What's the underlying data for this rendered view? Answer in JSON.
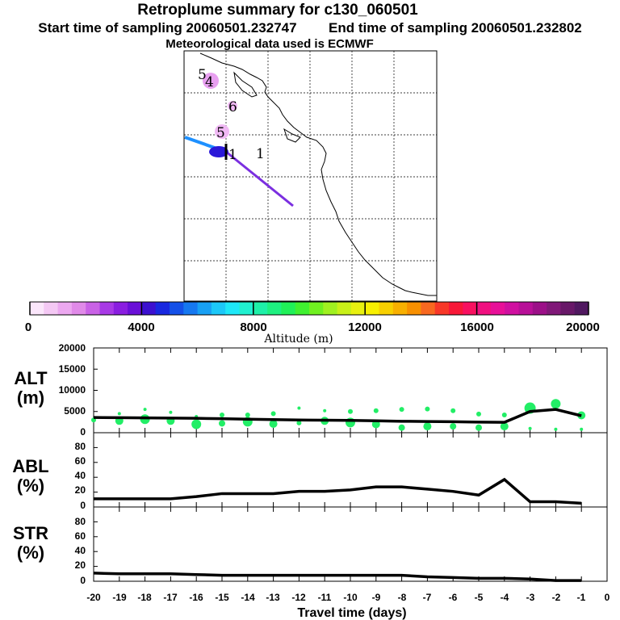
{
  "header": {
    "title": "Retroplume summary for c130_060501",
    "start_label": "Start time of sampling 20060501.232747",
    "end_label": "End time of sampling 20060501.232802",
    "met_label": "Meteorological data used is ECMWF"
  },
  "map": {
    "day_labels": [
      "5",
      "4",
      "6",
      "5",
      "1",
      "1"
    ],
    "trajectory_colors": [
      "#1e90ff",
      "#7b2fe0",
      "#2a18d8"
    ]
  },
  "colorbar": {
    "xlabel": "Altitude (m)",
    "ticks": [
      "0",
      "4000",
      "8000",
      "12000",
      "16000",
      "20000"
    ],
    "colors": [
      "#fbe6fb",
      "#f4c8f4",
      "#eca8f0",
      "#e08ae8",
      "#c962e6",
      "#a83ae6",
      "#8a1ee0",
      "#6a10d8",
      "#3c10d0",
      "#1828e0",
      "#1450e8",
      "#1678f0",
      "#18a0f4",
      "#1cc8f8",
      "#1ee8f8",
      "#20f0d0",
      "#1ef0a8",
      "#1ef080",
      "#20f058",
      "#40f030",
      "#70f020",
      "#a0f020",
      "#c8f018",
      "#e8f010",
      "#f8f000",
      "#f8d000",
      "#f8b000",
      "#f89000",
      "#f86820",
      "#f83828",
      "#f81838",
      "#f81060",
      "#f01080",
      "#e81098",
      "#d010a0",
      "#b81098",
      "#9c1088",
      "#801878",
      "#681868",
      "#501860"
    ]
  },
  "chart_data": [
    {
      "type": "line",
      "title": "ALT (m)",
      "ylabel_main": "ALT",
      "ylabel_unit": "(m)",
      "x": [
        -20,
        -19,
        -18,
        -17,
        -16,
        -15,
        -14,
        -13,
        -12,
        -11,
        -10,
        -9,
        -8,
        -7,
        -6,
        -5,
        -4,
        -3,
        -2,
        -1
      ],
      "values": [
        3600,
        3550,
        3500,
        3450,
        3400,
        3300,
        3200,
        3100,
        3000,
        2950,
        2900,
        2800,
        2700,
        2650,
        2600,
        2500,
        2450,
        5000,
        5500,
        4000
      ],
      "ylim": [
        0,
        20000
      ],
      "yticks": [
        "0",
        "5000",
        "10000",
        "15000",
        "20000"
      ],
      "scatter": [
        {
          "x": -20,
          "y": 3000,
          "r": 3
        },
        {
          "x": -19,
          "y": 2800,
          "r": 5
        },
        {
          "x": -19,
          "y": 4500,
          "r": 2
        },
        {
          "x": -18,
          "y": 3200,
          "r": 6
        },
        {
          "x": -18,
          "y": 5500,
          "r": 2
        },
        {
          "x": -17,
          "y": 2800,
          "r": 5
        },
        {
          "x": -17,
          "y": 4800,
          "r": 2
        },
        {
          "x": -16,
          "y": 2000,
          "r": 6
        },
        {
          "x": -16,
          "y": 3800,
          "r": 2
        },
        {
          "x": -15,
          "y": 2200,
          "r": 4
        },
        {
          "x": -15,
          "y": 4200,
          "r": 3
        },
        {
          "x": -14,
          "y": 2600,
          "r": 6
        },
        {
          "x": -14,
          "y": 4200,
          "r": 3
        },
        {
          "x": -13,
          "y": 2100,
          "r": 5
        },
        {
          "x": -13,
          "y": 4500,
          "r": 3
        },
        {
          "x": -12,
          "y": 2300,
          "r": 3
        },
        {
          "x": -12,
          "y": 5800,
          "r": 2
        },
        {
          "x": -11,
          "y": 2800,
          "r": 5
        },
        {
          "x": -11,
          "y": 5200,
          "r": 2
        },
        {
          "x": -10,
          "y": 2400,
          "r": 6
        },
        {
          "x": -10,
          "y": 5000,
          "r": 3
        },
        {
          "x": -9,
          "y": 2000,
          "r": 5
        },
        {
          "x": -9,
          "y": 5200,
          "r": 3
        },
        {
          "x": -8,
          "y": 1200,
          "r": 4
        },
        {
          "x": -8,
          "y": 5500,
          "r": 3
        },
        {
          "x": -7,
          "y": 1500,
          "r": 5
        },
        {
          "x": -7,
          "y": 5600,
          "r": 3
        },
        {
          "x": -6,
          "y": 1500,
          "r": 4
        },
        {
          "x": -6,
          "y": 5200,
          "r": 3
        },
        {
          "x": -5,
          "y": 1200,
          "r": 4
        },
        {
          "x": -5,
          "y": 4400,
          "r": 3
        },
        {
          "x": -4,
          "y": 1500,
          "r": 5
        },
        {
          "x": -4,
          "y": 4200,
          "r": 3
        },
        {
          "x": -3,
          "y": 5800,
          "r": 7
        },
        {
          "x": -3,
          "y": 1000,
          "r": 2
        },
        {
          "x": -2,
          "y": 6800,
          "r": 6
        },
        {
          "x": -2,
          "y": 800,
          "r": 2
        },
        {
          "x": -1,
          "y": 4100,
          "r": 5
        },
        {
          "x": -1,
          "y": 800,
          "r": 2
        }
      ]
    },
    {
      "type": "line",
      "title": "ABL (%)",
      "ylabel_main": "ABL",
      "ylabel_unit": "(%)",
      "x": [
        -20,
        -19,
        -18,
        -17,
        -16,
        -15,
        -14,
        -13,
        -12,
        -11,
        -10,
        -9,
        -8,
        -7,
        -6,
        -5,
        -4,
        -3,
        -2,
        -1
      ],
      "values": [
        11,
        11,
        11,
        11,
        14,
        18,
        18,
        18,
        21,
        21,
        23,
        27,
        27,
        24,
        21,
        16,
        37,
        7,
        7,
        5
      ],
      "ylim": [
        0,
        100
      ],
      "yticks": [
        "0",
        "20",
        "40",
        "60",
        "80"
      ]
    },
    {
      "type": "line",
      "title": "STR (%)",
      "ylabel_main": "STR",
      "ylabel_unit": "(%)",
      "x": [
        -20,
        -19,
        -18,
        -17,
        -16,
        -15,
        -14,
        -13,
        -12,
        -11,
        -10,
        -9,
        -8,
        -7,
        -6,
        -5,
        -4,
        -3,
        -2,
        -1
      ],
      "values": [
        11,
        10,
        10,
        10,
        9,
        8,
        8,
        8,
        8,
        8,
        8,
        8,
        8,
        6,
        5,
        4,
        4,
        3,
        1,
        1
      ],
      "ylim": [
        0,
        100
      ],
      "yticks": [
        "0",
        "20",
        "40",
        "60",
        "80"
      ],
      "xlabel": "Travel time (days)",
      "xticks": [
        "-20",
        "-19",
        "-18",
        "-17",
        "-16",
        "-15",
        "-14",
        "-13",
        "-12",
        "-11",
        "-10",
        "-9",
        "-8",
        "-7",
        "-6",
        "-5",
        "-4",
        "-3",
        "-2",
        "-1",
        "0"
      ]
    }
  ]
}
